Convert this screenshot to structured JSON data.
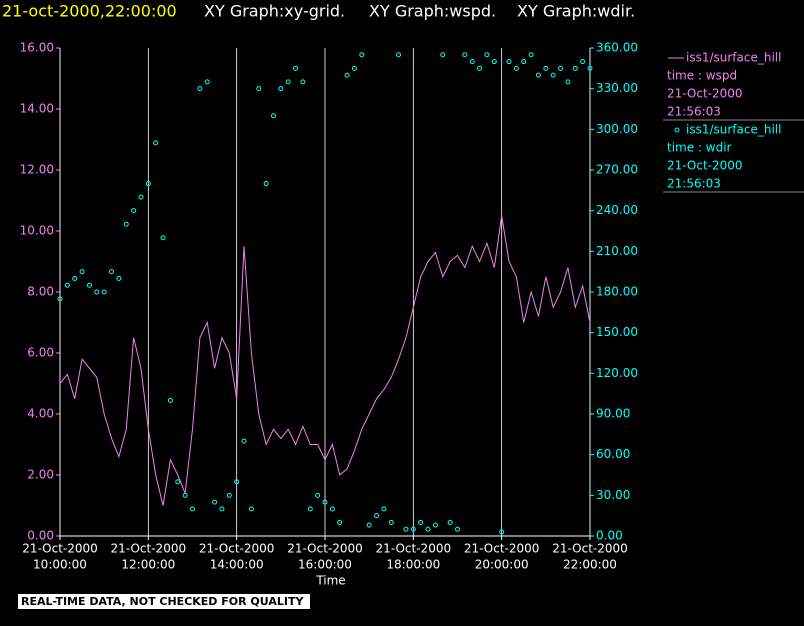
{
  "header": {
    "timestamp": "21-oct-2000,22:00:00",
    "graphs": [
      "XY Graph:xy-grid.",
      "XY Graph:wspd.",
      "XY Graph:wdir."
    ]
  },
  "chart_data": {
    "type": "line",
    "xlabel": "Time",
    "x": [
      "2000-10-21T10:00:00",
      "2000-10-21T10:10:00",
      "2000-10-21T10:20:00",
      "2000-10-21T10:30:00",
      "2000-10-21T10:40:00",
      "2000-10-21T10:50:00",
      "2000-10-21T11:00:00",
      "2000-10-21T11:10:00",
      "2000-10-21T11:20:00",
      "2000-10-21T11:30:00",
      "2000-10-21T11:40:00",
      "2000-10-21T11:50:00",
      "2000-10-21T12:00:00",
      "2000-10-21T12:10:00",
      "2000-10-21T12:20:00",
      "2000-10-21T12:30:00",
      "2000-10-21T12:40:00",
      "2000-10-21T12:50:00",
      "2000-10-21T13:00:00",
      "2000-10-21T13:10:00",
      "2000-10-21T13:20:00",
      "2000-10-21T13:30:00",
      "2000-10-21T13:40:00",
      "2000-10-21T13:50:00",
      "2000-10-21T14:00:00",
      "2000-10-21T14:10:00",
      "2000-10-21T14:20:00",
      "2000-10-21T14:30:00",
      "2000-10-21T14:40:00",
      "2000-10-21T14:50:00",
      "2000-10-21T15:00:00",
      "2000-10-21T15:10:00",
      "2000-10-21T15:20:00",
      "2000-10-21T15:30:00",
      "2000-10-21T15:40:00",
      "2000-10-21T15:50:00",
      "2000-10-21T16:00:00",
      "2000-10-21T16:10:00",
      "2000-10-21T16:20:00",
      "2000-10-21T16:30:00",
      "2000-10-21T16:40:00",
      "2000-10-21T16:50:00",
      "2000-10-21T17:00:00",
      "2000-10-21T17:10:00",
      "2000-10-21T17:20:00",
      "2000-10-21T17:30:00",
      "2000-10-21T17:40:00",
      "2000-10-21T17:50:00",
      "2000-10-21T18:00:00",
      "2000-10-21T18:10:00",
      "2000-10-21T18:20:00",
      "2000-10-21T18:30:00",
      "2000-10-21T18:40:00",
      "2000-10-21T18:50:00",
      "2000-10-21T19:00:00",
      "2000-10-21T19:10:00",
      "2000-10-21T19:20:00",
      "2000-10-21T19:30:00",
      "2000-10-21T19:40:00",
      "2000-10-21T19:50:00",
      "2000-10-21T20:00:00",
      "2000-10-21T20:10:00",
      "2000-10-21T20:20:00",
      "2000-10-21T20:30:00",
      "2000-10-21T20:40:00",
      "2000-10-21T20:50:00",
      "2000-10-21T21:00:00",
      "2000-10-21T21:10:00",
      "2000-10-21T21:20:00",
      "2000-10-21T21:30:00",
      "2000-10-21T21:40:00",
      "2000-10-21T21:50:00",
      "2000-10-21T22:00:00"
    ],
    "xlim": [
      "2000-10-21T10:00:00",
      "2000-10-21T22:00:00"
    ],
    "xticks": [
      {
        "value": "2000-10-21T10:00:00",
        "label": [
          "21-Oct-2000",
          "10:00:00"
        ]
      },
      {
        "value": "2000-10-21T12:00:00",
        "label": [
          "21-Oct-2000",
          "12:00:00"
        ]
      },
      {
        "value": "2000-10-21T14:00:00",
        "label": [
          "21-Oct-2000",
          "14:00:00"
        ]
      },
      {
        "value": "2000-10-21T16:00:00",
        "label": [
          "21-Oct-2000",
          "16:00:00"
        ]
      },
      {
        "value": "2000-10-21T18:00:00",
        "label": [
          "21-Oct-2000",
          "18:00:00"
        ]
      },
      {
        "value": "2000-10-21T20:00:00",
        "label": [
          "21-Oct-2000",
          "20:00:00"
        ]
      },
      {
        "value": "2000-10-21T22:00:00",
        "label": [
          "21-Oct-2000",
          "22:00:00"
        ]
      }
    ],
    "ylim": [
      0,
      16
    ],
    "yticks": [
      {
        "value": 0,
        "label": "0.00"
      },
      {
        "value": 2,
        "label": "2.00"
      },
      {
        "value": 4,
        "label": "4.00"
      },
      {
        "value": 6,
        "label": "6.00"
      },
      {
        "value": 8,
        "label": "8.00"
      },
      {
        "value": 10,
        "label": "10.00"
      },
      {
        "value": 12,
        "label": "12.00"
      },
      {
        "value": 14,
        "label": "14.00"
      },
      {
        "value": 16,
        "label": "16.00"
      }
    ],
    "y2lim": [
      0,
      360
    ],
    "y2ticks": [
      {
        "value": 0,
        "label": "0.00"
      },
      {
        "value": 30,
        "label": "30.00"
      },
      {
        "value": 60,
        "label": "60.00"
      },
      {
        "value": 90,
        "label": "90.00"
      },
      {
        "value": 120,
        "label": "120.00"
      },
      {
        "value": 150,
        "label": "150.00"
      },
      {
        "value": 180,
        "label": "180.00"
      },
      {
        "value": 210,
        "label": "210.00"
      },
      {
        "value": 240,
        "label": "240.00"
      },
      {
        "value": 270,
        "label": "270.00"
      },
      {
        "value": 300,
        "label": "300.00"
      },
      {
        "value": 330,
        "label": "330.00"
      },
      {
        "value": 360,
        "label": "360.00"
      }
    ],
    "grid": "x",
    "series": [
      {
        "name": "iss1/surface_hill",
        "type": "line",
        "color": "#ee82ee",
        "legend_lines": [
          "time : wspd",
          "21-Oct-2000",
          "21:56:03"
        ],
        "values": [
          5.0,
          5.3,
          4.5,
          5.8,
          5.5,
          5.2,
          4.0,
          3.2,
          2.6,
          3.5,
          6.5,
          5.5,
          3.5,
          2.0,
          1.0,
          2.5,
          2.0,
          1.4,
          3.5,
          6.5,
          7.0,
          5.5,
          6.5,
          6.0,
          4.5,
          9.5,
          6.0,
          4.0,
          3.0,
          3.5,
          3.2,
          3.5,
          3.0,
          3.6,
          3.0,
          3.0,
          2.5,
          3.0,
          2.0,
          2.2,
          2.8,
          3.5,
          4.0,
          4.5,
          4.8,
          5.2,
          5.8,
          6.5,
          7.5,
          8.5,
          9.0,
          9.3,
          8.5,
          9.0,
          9.2,
          8.8,
          9.5,
          9.0,
          9.6,
          8.8,
          10.5,
          9.0,
          8.5,
          7.0,
          8.0,
          7.2,
          8.5,
          7.5,
          8.0,
          8.8,
          7.5,
          8.2,
          7.0
        ]
      },
      {
        "name": "iss1/surface_hill",
        "type": "scatter",
        "axis": "y2",
        "color": "#00ffff",
        "legend_lines": [
          "time : wdir",
          "21-Oct-2000",
          "21:56:03"
        ],
        "values": [
          175,
          185,
          190,
          195,
          185,
          180,
          180,
          195,
          190,
          230,
          240,
          250,
          260,
          290,
          220,
          100,
          40,
          30,
          20,
          330,
          335,
          25,
          20,
          30,
          40,
          70,
          20,
          330,
          260,
          310,
          330,
          335,
          345,
          335,
          20,
          30,
          25,
          20,
          10,
          340,
          345,
          355,
          8,
          15,
          20,
          10,
          355,
          5,
          5,
          10,
          5,
          8,
          355,
          10,
          5,
          355,
          350,
          345,
          355,
          350,
          3,
          350,
          345,
          350,
          355,
          340,
          345,
          340,
          345,
          335,
          345,
          350,
          345
        ]
      }
    ]
  },
  "footer": "REAL-TIME DATA, NOT CHECKED FOR QUALITY"
}
